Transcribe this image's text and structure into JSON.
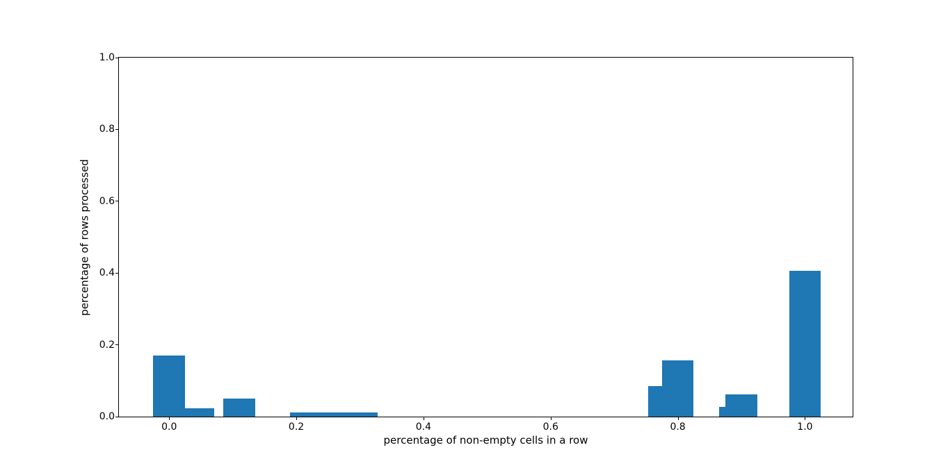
{
  "figure": {
    "background": "#ffffff"
  },
  "chart_data": {
    "type": "bar",
    "title": "",
    "xlabel": "percentage of non-empty cells in a row",
    "ylabel": "percentage of rows processed",
    "xlim": [
      -0.079,
      1.075
    ],
    "ylim": [
      0.0,
      1.0
    ],
    "grid": false,
    "legend": null,
    "bar_color": "#1f77b4",
    "bar_width": 0.05,
    "x_ticks": [
      {
        "value": 0.0,
        "label": "0.0"
      },
      {
        "value": 0.2,
        "label": "0.2"
      },
      {
        "value": 0.4,
        "label": "0.4"
      },
      {
        "value": 0.6,
        "label": "0.6"
      },
      {
        "value": 0.8,
        "label": "0.8"
      },
      {
        "value": 1.0,
        "label": "1.0"
      }
    ],
    "y_ticks": [
      {
        "value": 0.0,
        "label": "0.0"
      },
      {
        "value": 0.2,
        "label": "0.2"
      },
      {
        "value": 0.4,
        "label": "0.4"
      },
      {
        "value": 0.6,
        "label": "0.6"
      },
      {
        "value": 0.8,
        "label": "0.8"
      },
      {
        "value": 1.0,
        "label": "1.0"
      }
    ],
    "bars": [
      {
        "x": 0.0,
        "height": 0.17
      },
      {
        "x": 0.046,
        "height": 0.024
      },
      {
        "x": 0.11,
        "height": 0.05
      },
      {
        "x": 0.215,
        "height": 0.012
      },
      {
        "x": 0.259,
        "height": 0.012
      },
      {
        "x": 0.303,
        "height": 0.012
      },
      {
        "x": 0.778,
        "height": 0.085
      },
      {
        "x": 0.8,
        "height": 0.156
      },
      {
        "x": 0.89,
        "height": 0.027
      },
      {
        "x": 0.9,
        "height": 0.062
      },
      {
        "x": 1.0,
        "height": 0.406
      }
    ]
  }
}
